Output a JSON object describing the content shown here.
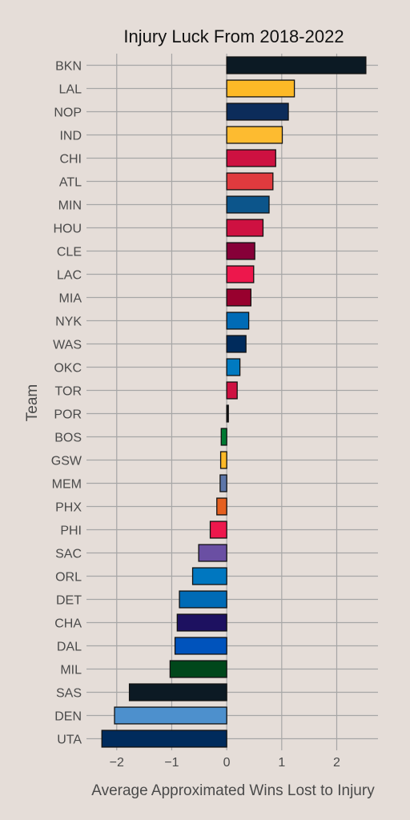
{
  "chart_data": {
    "type": "bar",
    "orientation": "horizontal",
    "title": "Injury Luck From 2018-2022",
    "xlabel": "Average Approximated Wins Lost to Injury",
    "ylabel": "Team",
    "xlim": [
      -2.55,
      2.75
    ],
    "xticks": [
      -2,
      -1,
      0,
      1,
      2
    ],
    "grid": true,
    "categories": [
      "BKN",
      "LAL",
      "NOP",
      "IND",
      "CHI",
      "ATL",
      "MIN",
      "HOU",
      "CLE",
      "LAC",
      "MIA",
      "NYK",
      "WAS",
      "OKC",
      "TOR",
      "POR",
      "BOS",
      "GSW",
      "MEM",
      "PHX",
      "PHI",
      "SAC",
      "ORL",
      "DET",
      "CHA",
      "DAL",
      "MIL",
      "SAS",
      "DEN",
      "UTA"
    ],
    "values": [
      2.53,
      1.23,
      1.12,
      1.01,
      0.89,
      0.84,
      0.77,
      0.66,
      0.51,
      0.49,
      0.44,
      0.4,
      0.35,
      0.24,
      0.19,
      0.03,
      -0.1,
      -0.11,
      -0.12,
      -0.18,
      -0.3,
      -0.51,
      -0.62,
      -0.86,
      -0.9,
      -0.94,
      -1.03,
      -1.77,
      -2.04,
      -2.27
    ],
    "colors": [
      "#0c1a24",
      "#fdb927",
      "#0c2c5a",
      "#fdbb30",
      "#ce1141",
      "#e03a3e",
      "#0c558b",
      "#ce1141",
      "#860038",
      "#ed174c",
      "#98002e",
      "#006bb6",
      "#002b5c",
      "#007ac1",
      "#ce1141",
      "#111111",
      "#007a33",
      "#fdb927",
      "#5d76a9",
      "#e56020",
      "#ed174c",
      "#6a4fa3",
      "#0077c0",
      "#006bb6",
      "#1d1160",
      "#0053bc",
      "#00471b",
      "#0c1a24",
      "#4d90cd",
      "#002b5c"
    ]
  }
}
